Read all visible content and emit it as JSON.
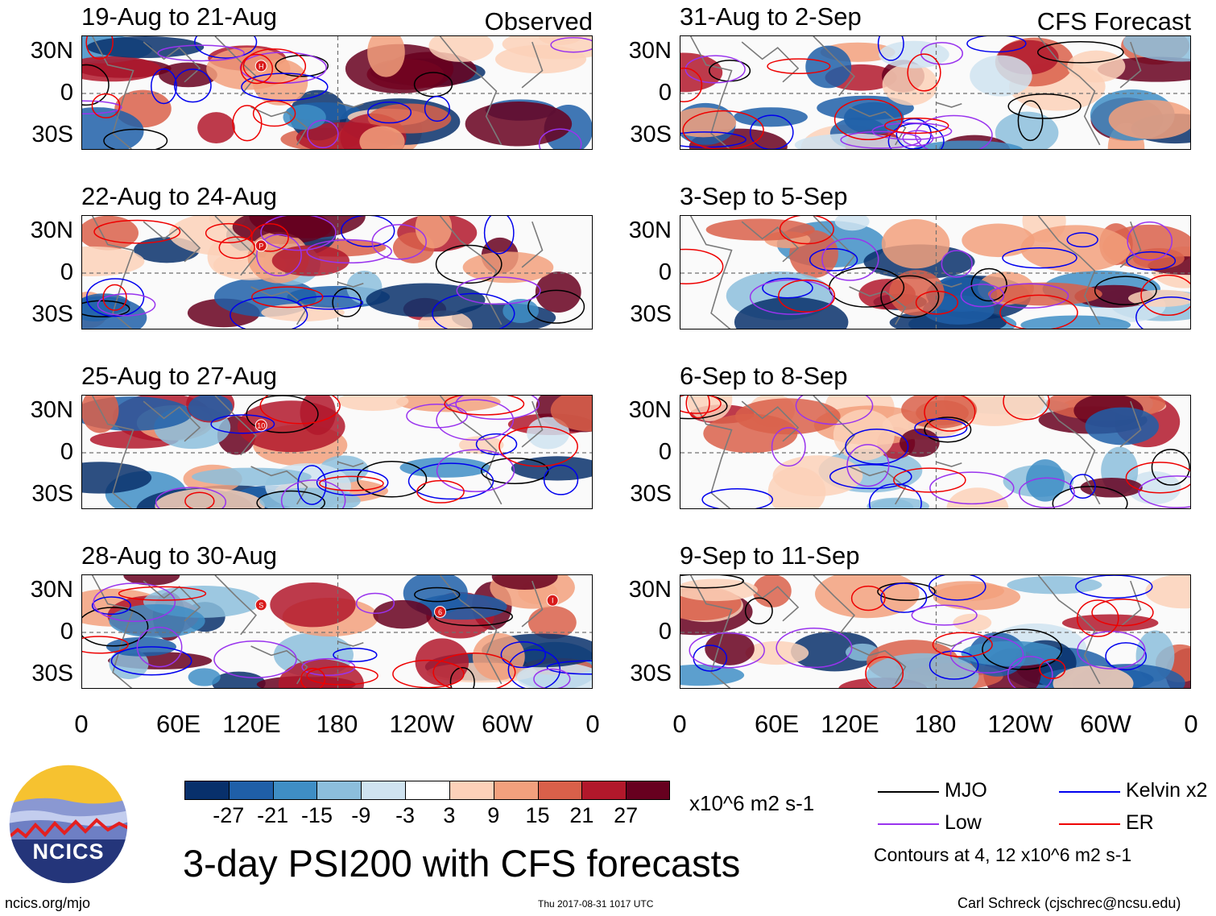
{
  "chart_data": {
    "type": "heatmap",
    "title": "3-day PSI200 with CFS forecasts",
    "units": "x10^6 m2 s-1",
    "contour_note": "Contours at 4, 12 x10^6 m2 s-1",
    "colorbar": {
      "ticks": [
        "-27",
        "-21",
        "-15",
        "-9",
        "-3",
        "3",
        "9",
        "15",
        "21",
        "27"
      ],
      "colors": [
        "#08306b",
        "#1f5fa8",
        "#3f8ec5",
        "#8cbedc",
        "#cfe3f0",
        "#ffffff",
        "#fcd1b9",
        "#f2a07d",
        "#d9604a",
        "#b2182b",
        "#67001f"
      ]
    },
    "lat_ticks": [
      "30N",
      "0",
      "30S"
    ],
    "lon_ticks": [
      "0",
      "60E",
      "120E",
      "180",
      "120W",
      "60W",
      "0"
    ],
    "columns": [
      {
        "label": "Observed",
        "panels": [
          {
            "title": "19-Aug to 21-Aug",
            "storms": [
              "H"
            ]
          },
          {
            "title": "22-Aug to 24-Aug",
            "storms": [
              "P"
            ]
          },
          {
            "title": "25-Aug to 27-Aug",
            "storms": [
              "10"
            ]
          },
          {
            "title": "28-Aug to 30-Aug",
            "storms": [
              "S",
              "6",
              "I"
            ]
          }
        ]
      },
      {
        "label": "CFS Forecast",
        "panels": [
          {
            "title": "31-Aug to 2-Sep",
            "storms": []
          },
          {
            "title": "3-Sep to 5-Sep",
            "storms": []
          },
          {
            "title": "6-Sep to 8-Sep",
            "storms": []
          },
          {
            "title": "9-Sep to 11-Sep",
            "storms": []
          }
        ]
      }
    ]
  },
  "legend": [
    {
      "label": "MJO",
      "color": "#000000"
    },
    {
      "label": "Kelvin x2",
      "color": "#0000ee"
    },
    {
      "label": "Low",
      "color": "#9933ee"
    },
    {
      "label": "ER",
      "color": "#ee0000"
    }
  ],
  "logo": {
    "text": "NCICS"
  },
  "footer": {
    "url": "ncics.org/mjo",
    "timestamp": "Thu 2017-08-31 1017 UTC",
    "credit": "Carl Schreck (cjschrec@ncsu.edu)"
  },
  "colors": {
    "grid": "#707070",
    "coast": "#7a7a7a"
  }
}
